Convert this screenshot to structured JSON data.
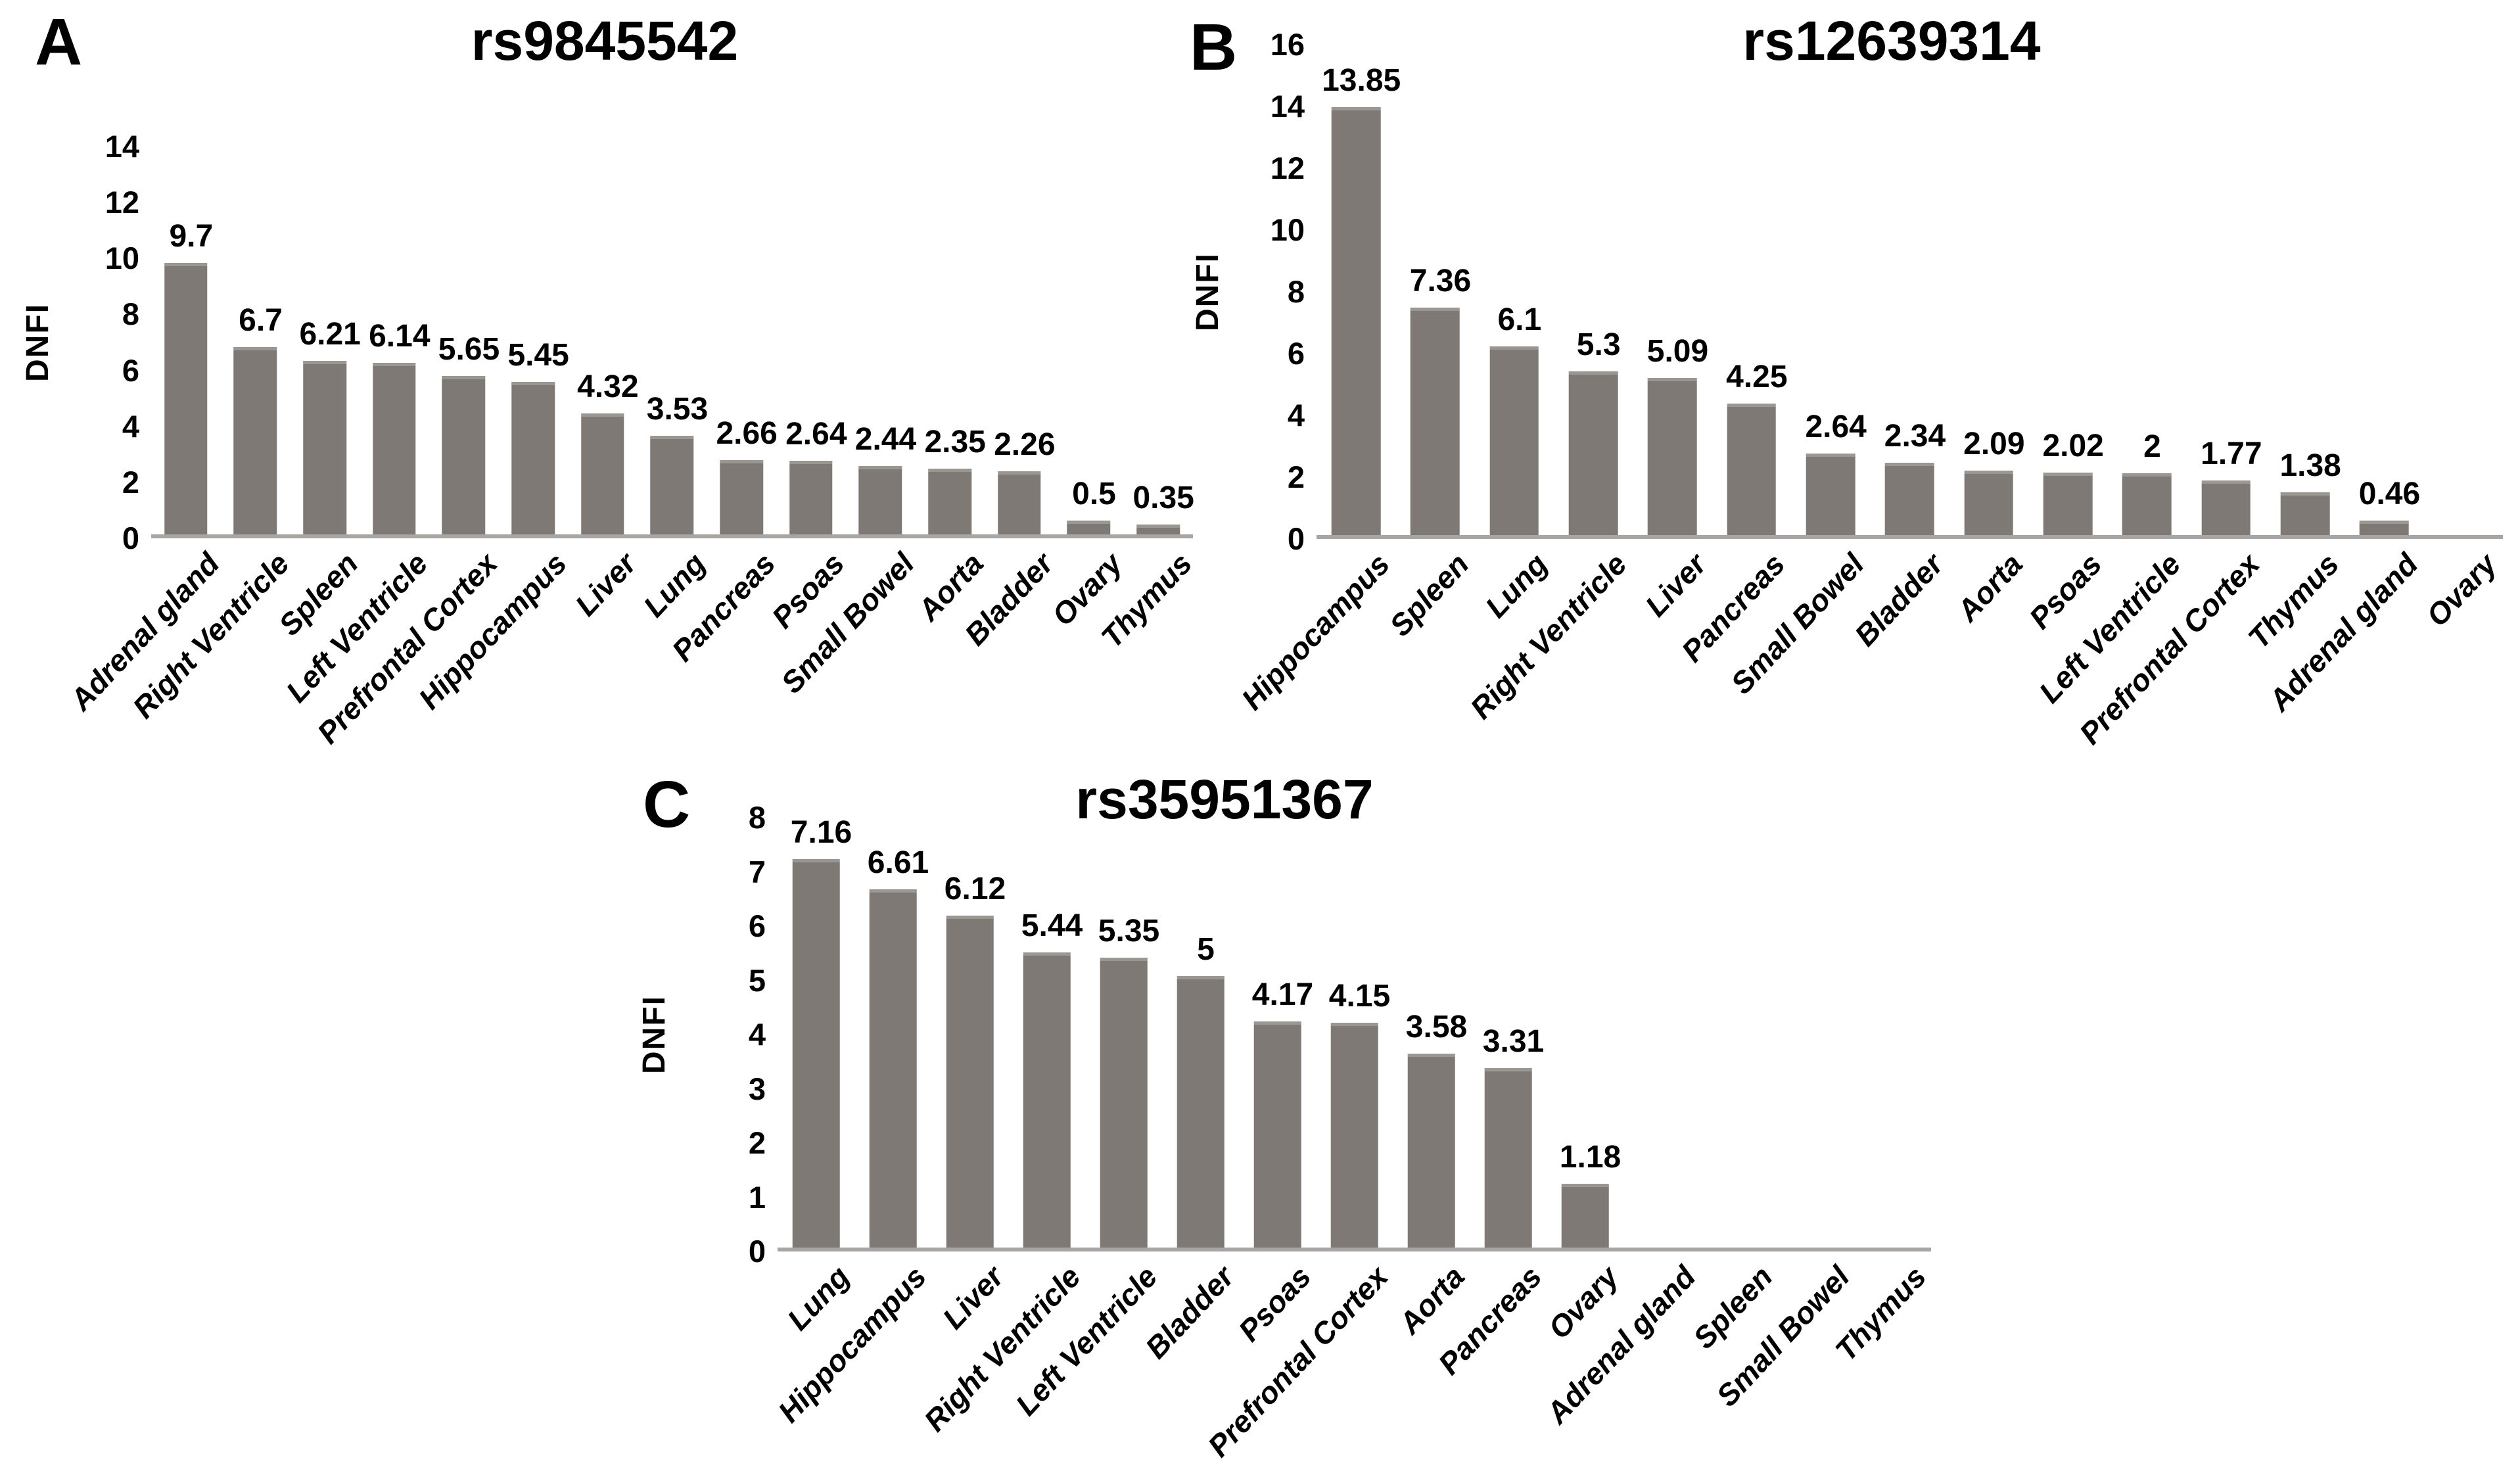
{
  "figure": {
    "background_color": "#ffffff",
    "bar_color": "#7e7974",
    "axis_line_color": "#a8a5a2",
    "text_color": "#000000"
  },
  "chart_data": [
    {
      "type": "bar",
      "panel_label": "A",
      "title": "rs9845542",
      "xlabel": "",
      "ylabel": "DNFI",
      "ylim": [
        0,
        14
      ],
      "ytick_interval": 2,
      "yticks": [
        0,
        2,
        4,
        6,
        8,
        10,
        12,
        14
      ],
      "grid": false,
      "legend": "none",
      "categories": [
        "Adrenal gland",
        "Right Ventricle",
        "Spleen",
        "Left Ventricle",
        "Prefrontal Cortex",
        "Hippocampus",
        "Liver",
        "Lung",
        "Pancreas",
        "Psoas",
        "Small Bowel",
        "Aorta",
        "Bladder",
        "Ovary",
        "Thymus"
      ],
      "values": [
        9.7,
        6.7,
        6.21,
        6.14,
        5.65,
        5.45,
        4.32,
        3.53,
        2.66,
        2.64,
        2.44,
        2.35,
        2.26,
        0.5,
        0.35
      ],
      "data_labels": [
        "9.7",
        "6.7",
        "6.21",
        "6.14",
        "5.65",
        "5.45",
        "4.32",
        "3.53",
        "2.66",
        "2.64",
        "2.44",
        "2.35",
        "2.26",
        "0.5",
        "0.35"
      ]
    },
    {
      "type": "bar",
      "panel_label": "B",
      "title": "rs12639314",
      "xlabel": "",
      "ylabel": "DNFI",
      "ylim": [
        0,
        16
      ],
      "ytick_interval": 2,
      "yticks": [
        0,
        2,
        4,
        6,
        8,
        10,
        12,
        14,
        16
      ],
      "grid": false,
      "legend": "none",
      "categories": [
        "Hippocampus",
        "Spleen",
        "Lung",
        "Right Ventricle",
        "Liver",
        "Pancreas",
        "Small Bowel",
        "Bladder",
        "Aorta",
        "Psoas",
        "Left Ventricle",
        "Prefrontal Cortex",
        "Thymus",
        "Adrenal gland",
        "Ovary"
      ],
      "values": [
        13.85,
        7.36,
        6.1,
        5.3,
        5.09,
        4.25,
        2.64,
        2.34,
        2.09,
        2.02,
        2,
        1.77,
        1.38,
        0.46,
        0
      ],
      "data_labels": [
        "13.85",
        "7.36",
        "6.1",
        "5.3",
        "5.09",
        "4.25",
        "2.64",
        "2.34",
        "2.09",
        "2.02",
        "2",
        "1.77",
        "1.38",
        "0.46",
        ""
      ]
    },
    {
      "type": "bar",
      "panel_label": "C",
      "title": "rs35951367",
      "xlabel": "",
      "ylabel": "DNFI",
      "ylim": [
        0,
        8
      ],
      "ytick_interval": 1,
      "yticks": [
        0,
        1,
        2,
        3,
        4,
        5,
        6,
        7,
        8
      ],
      "grid": false,
      "legend": "none",
      "categories": [
        "Lung",
        "Hippocampus",
        "Liver",
        "Right Ventricle",
        "Left Ventricle",
        "Bladder",
        "Psoas",
        "Prefrontal Cortex",
        "Aorta",
        "Pancreas",
        "Ovary",
        "Adrenal gland",
        "Spleen",
        "Small Bowel",
        "Thymus"
      ],
      "values": [
        7.16,
        6.61,
        6.12,
        5.44,
        5.35,
        5,
        4.17,
        4.15,
        3.58,
        3.31,
        1.18,
        0,
        0,
        0,
        0
      ],
      "data_labels": [
        "7.16",
        "6.61",
        "6.12",
        "5.44",
        "5.35",
        "5",
        "4.17",
        "4.15",
        "3.58",
        "3.31",
        "1.18",
        "",
        "",
        "",
        ""
      ]
    }
  ]
}
